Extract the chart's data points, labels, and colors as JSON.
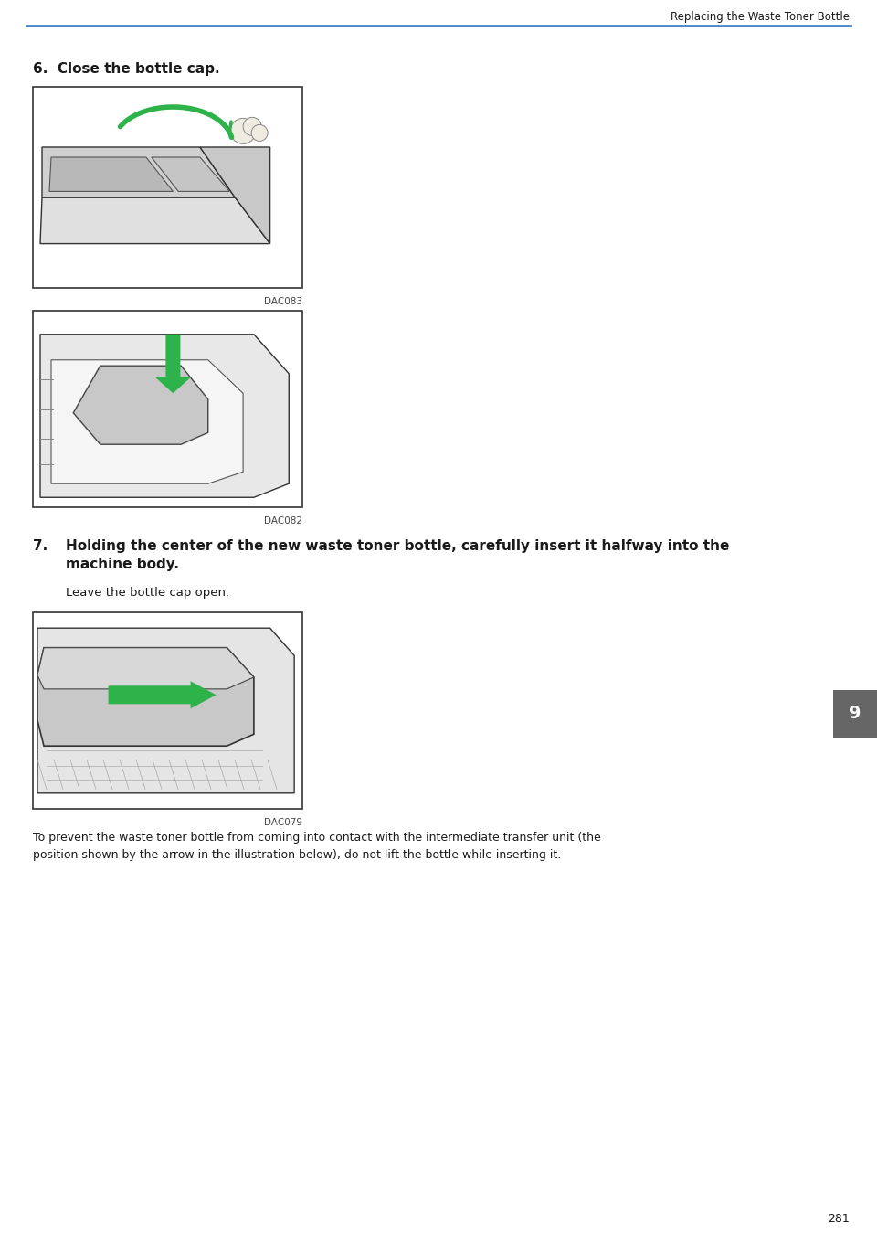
{
  "header_text": "Replacing the Waste Toner Bottle",
  "header_line_color": "#4a86c8",
  "background_color": "#ffffff",
  "text_color": "#1a1a1a",
  "step6_label": "6.",
  "step6_text": "Close the bottle cap.",
  "img1_caption": "DAC083",
  "img2_caption": "DAC082",
  "step7_label": "7.",
  "step7_text_bold": "Holding the center of the new waste toner bottle, carefully insert it halfway into the\nmachine body.",
  "step7_text_normal": "Leave the bottle cap open.",
  "img3_caption": "DAC079",
  "note_text": "To prevent the waste toner bottle from coming into contact with the intermediate transfer unit (the\nposition shown by the arrow in the illustration below), do not lift the bottle while inserting it.",
  "page_number": "281",
  "tab_label": "9",
  "tab_color": "#666666",
  "tab_text_color": "#ffffff",
  "green_color": "#2db34a",
  "img_border_color": "#333333",
  "img_bg_color": "#ffffff",
  "machine_line_color": "#222222",
  "machine_fill_color": "#cccccc",
  "machine_fill2_color": "#dddddd"
}
